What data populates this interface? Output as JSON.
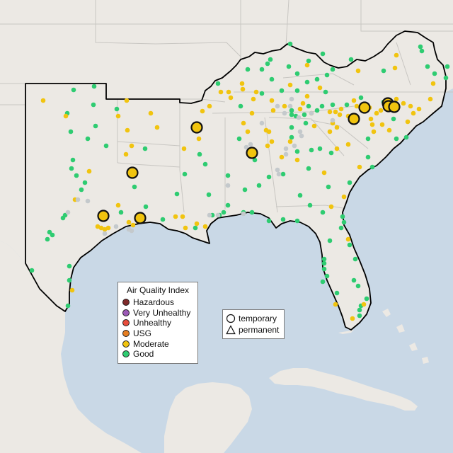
{
  "legend": {
    "title": "Air Quality Index",
    "categories": [
      {
        "label": "Hazardous",
        "color": "#7e2a2a"
      },
      {
        "label": "Very Unhealthy",
        "color": "#9b59b6"
      },
      {
        "label": "Unhealthy",
        "color": "#e74c3c"
      },
      {
        "label": "USG",
        "color": "#e67e22"
      },
      {
        "label": "Moderate",
        "color": "#f1c40f"
      },
      {
        "label": "Good",
        "color": "#2ecc71"
      }
    ]
  },
  "monitor_types": {
    "temporary": "temporary",
    "permanent": "permanent"
  },
  "colors": {
    "water": "#c9d8e6",
    "land": "#ece9e4",
    "no_data": "#c4c9cc",
    "outline": "#000000"
  }
}
